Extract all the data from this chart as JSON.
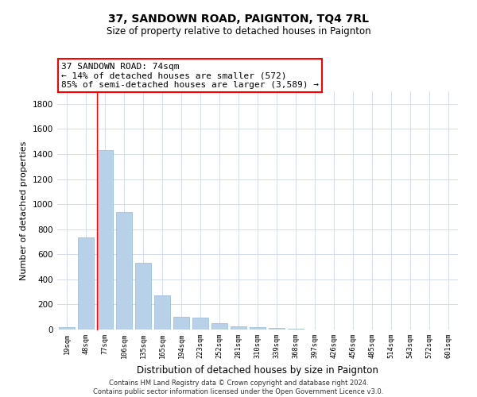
{
  "title": "37, SANDOWN ROAD, PAIGNTON, TQ4 7RL",
  "subtitle": "Size of property relative to detached houses in Paignton",
  "xlabel": "Distribution of detached houses by size in Paignton",
  "ylabel": "Number of detached properties",
  "bar_labels": [
    "19sqm",
    "48sqm",
    "77sqm",
    "106sqm",
    "135sqm",
    "165sqm",
    "194sqm",
    "223sqm",
    "252sqm",
    "281sqm",
    "310sqm",
    "339sqm",
    "368sqm",
    "397sqm",
    "426sqm",
    "456sqm",
    "485sqm",
    "514sqm",
    "543sqm",
    "572sqm",
    "601sqm"
  ],
  "bar_values": [
    20,
    735,
    1430,
    935,
    530,
    270,
    103,
    92,
    50,
    28,
    18,
    10,
    5,
    2,
    1,
    1,
    0,
    0,
    0,
    0,
    0
  ],
  "bar_color": "#b8d0e8",
  "bar_edge_color": "#99b8d8",
  "property_line_x": 2,
  "annotation_title": "37 SANDOWN ROAD: 74sqm",
  "annotation_line1": "← 14% of detached houses are smaller (572)",
  "annotation_line2": "85% of semi-detached houses are larger (3,589) →",
  "ylim": [
    0,
    1900
  ],
  "yticks": [
    0,
    200,
    400,
    600,
    800,
    1000,
    1200,
    1400,
    1600,
    1800
  ],
  "footer_line1": "Contains HM Land Registry data © Crown copyright and database right 2024.",
  "footer_line2": "Contains public sector information licensed under the Open Government Licence v3.0.",
  "bg_color": "#ffffff",
  "grid_color": "#d0d8e8"
}
